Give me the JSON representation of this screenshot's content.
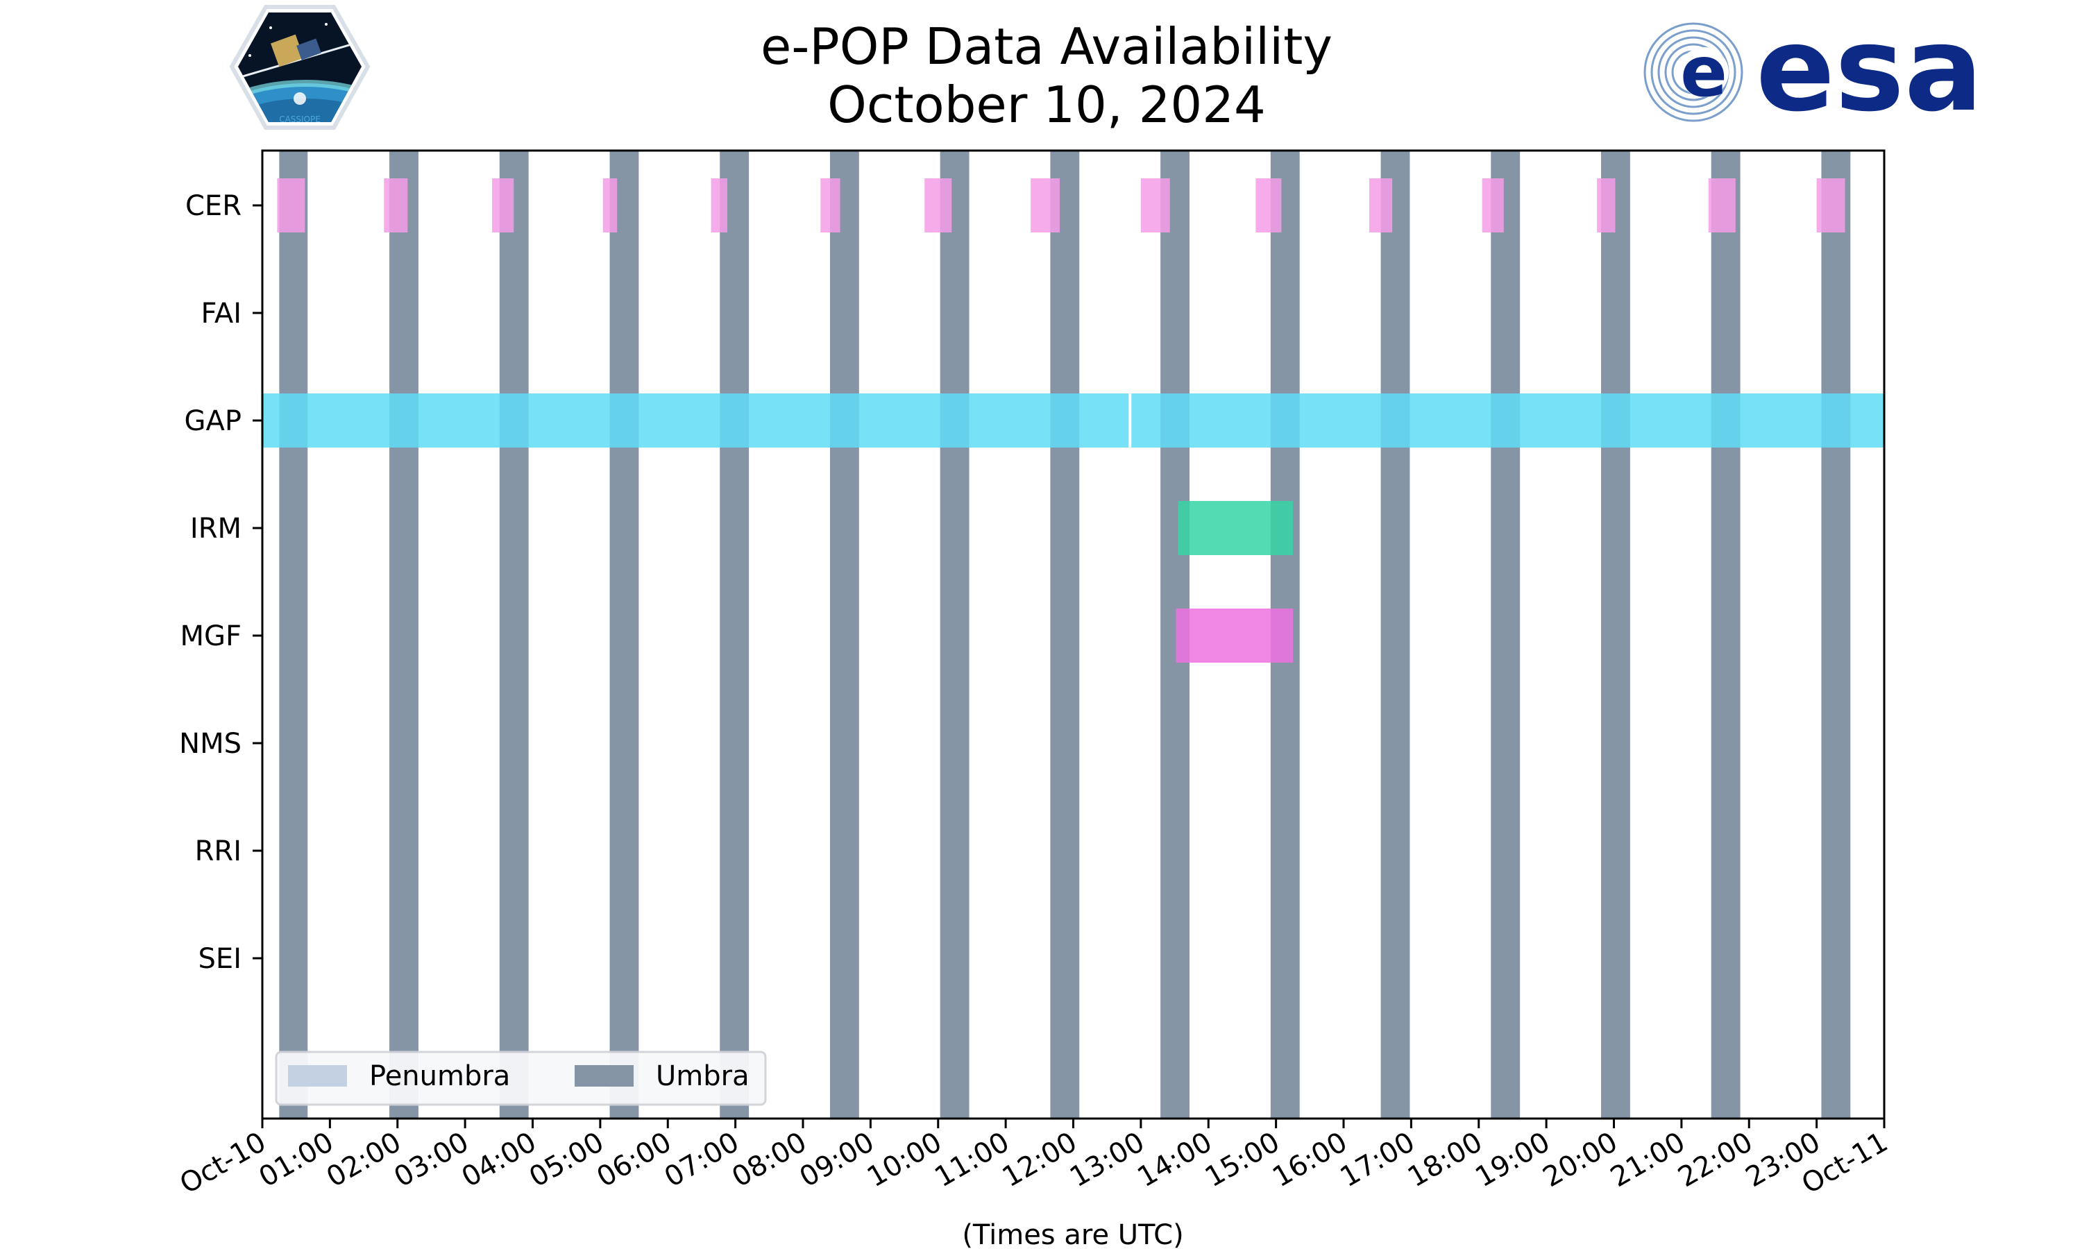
{
  "chart_data": {
    "type": "timeline",
    "title": "e-POP Data Availability",
    "subtitle": "October 10, 2024",
    "xlabel": "(Times are UTC)",
    "x_range_hours": [
      0,
      24
    ],
    "x_ticks": [
      {
        "hour": 0,
        "label": "Oct-10"
      },
      {
        "hour": 1,
        "label": "01:00"
      },
      {
        "hour": 2,
        "label": "02:00"
      },
      {
        "hour": 3,
        "label": "03:00"
      },
      {
        "hour": 4,
        "label": "04:00"
      },
      {
        "hour": 5,
        "label": "05:00"
      },
      {
        "hour": 6,
        "label": "06:00"
      },
      {
        "hour": 7,
        "label": "07:00"
      },
      {
        "hour": 8,
        "label": "08:00"
      },
      {
        "hour": 9,
        "label": "09:00"
      },
      {
        "hour": 10,
        "label": "10:00"
      },
      {
        "hour": 11,
        "label": "11:00"
      },
      {
        "hour": 12,
        "label": "12:00"
      },
      {
        "hour": 13,
        "label": "13:00"
      },
      {
        "hour": 14,
        "label": "14:00"
      },
      {
        "hour": 15,
        "label": "15:00"
      },
      {
        "hour": 16,
        "label": "16:00"
      },
      {
        "hour": 17,
        "label": "17:00"
      },
      {
        "hour": 18,
        "label": "18:00"
      },
      {
        "hour": 19,
        "label": "19:00"
      },
      {
        "hour": 20,
        "label": "20:00"
      },
      {
        "hour": 21,
        "label": "21:00"
      },
      {
        "hour": 22,
        "label": "22:00"
      },
      {
        "hour": 23,
        "label": "23:00"
      },
      {
        "hour": 24,
        "label": "Oct-11"
      }
    ],
    "instruments": [
      "CER",
      "FAI",
      "GAP",
      "IRM",
      "MGF",
      "NMS",
      "RRI",
      "SEI"
    ],
    "legend": [
      {
        "label": "Penumbra",
        "color": "#c3d1e3"
      },
      {
        "label": "Umbra",
        "color": "#8595a6"
      }
    ],
    "legend_position": "lower-left",
    "umbra_intervals_hours": [
      [
        0.25,
        0.67
      ],
      [
        1.88,
        2.31
      ],
      [
        3.51,
        3.94
      ],
      [
        5.14,
        5.57
      ],
      [
        6.77,
        7.2
      ],
      [
        8.4,
        8.83
      ],
      [
        10.03,
        10.46
      ],
      [
        11.66,
        12.09
      ],
      [
        13.29,
        13.72
      ],
      [
        14.92,
        15.35
      ],
      [
        16.55,
        16.98
      ],
      [
        18.18,
        18.61
      ],
      [
        19.81,
        20.24
      ],
      [
        21.44,
        21.87
      ],
      [
        23.07,
        23.5
      ]
    ],
    "series": [
      {
        "name": "CER",
        "color": "#f59ee8",
        "intervals_hours": [
          [
            0.22,
            0.63
          ],
          [
            1.8,
            2.15
          ],
          [
            3.4,
            3.72
          ],
          [
            5.04,
            5.25
          ],
          [
            6.64,
            6.88
          ],
          [
            8.26,
            8.55
          ],
          [
            9.8,
            10.2
          ],
          [
            11.37,
            11.8
          ],
          [
            13.0,
            13.43
          ],
          [
            14.7,
            15.08
          ],
          [
            16.38,
            16.72
          ],
          [
            18.05,
            18.37
          ],
          [
            19.75,
            20.02
          ],
          [
            21.4,
            21.8
          ],
          [
            23.0,
            23.42
          ]
        ]
      },
      {
        "name": "FAI",
        "color": "#f59ee8",
        "intervals_hours": []
      },
      {
        "name": "GAP",
        "color": "#5fdcf7",
        "intervals_hours": [
          [
            0.0,
            12.82
          ],
          [
            12.86,
            24.0
          ]
        ]
      },
      {
        "name": "IRM",
        "color": "#35d6a6",
        "intervals_hours": [
          [
            13.55,
            15.25
          ]
        ]
      },
      {
        "name": "MGF",
        "color": "#ee72e0",
        "intervals_hours": [
          [
            13.52,
            15.25
          ]
        ]
      },
      {
        "name": "NMS",
        "color": "#ee72e0",
        "intervals_hours": []
      },
      {
        "name": "RRI",
        "color": "#ee72e0",
        "intervals_hours": []
      },
      {
        "name": "SEI",
        "color": "#ee72e0",
        "intervals_hours": []
      }
    ]
  },
  "logos": {
    "cassiope_text": "CASSIOPE",
    "esa_text": "esa"
  }
}
